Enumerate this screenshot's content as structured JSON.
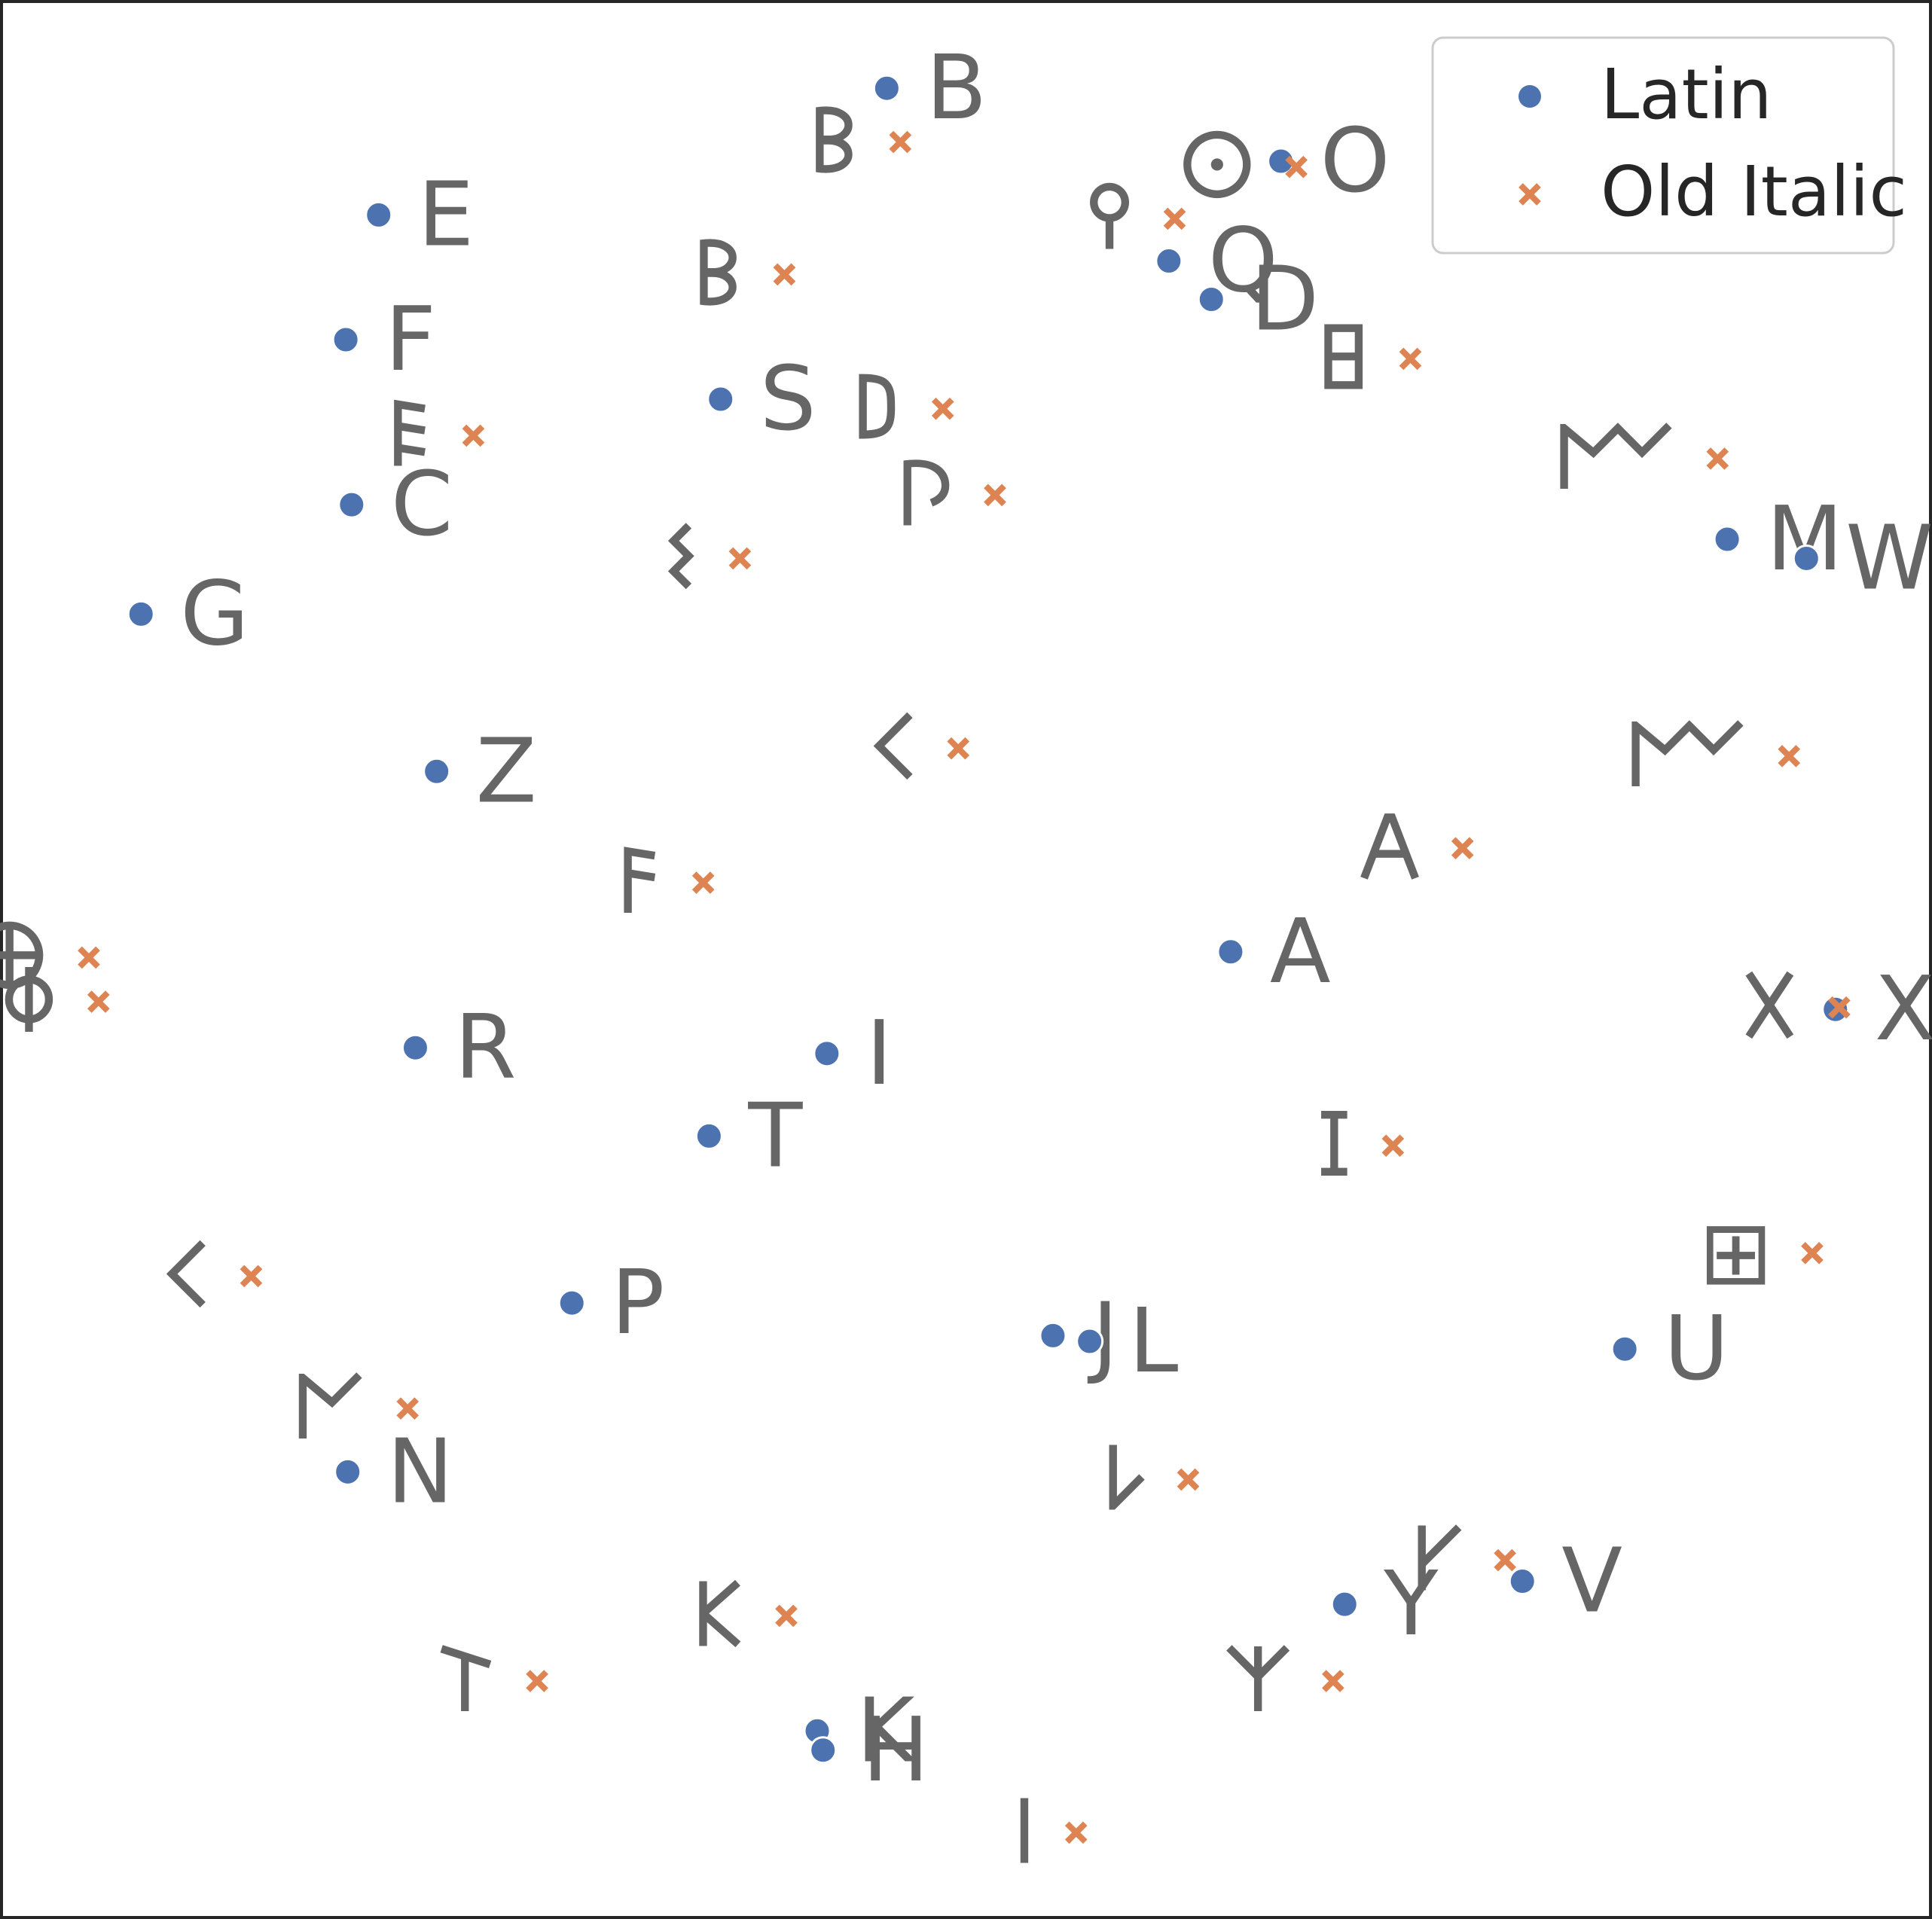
{
  "chart_data": {
    "type": "scatter",
    "title": "",
    "xlabel": "",
    "ylabel": "",
    "xlim": [
      0,
      1
    ],
    "ylim": [
      0,
      1
    ],
    "axes_visible": false,
    "grid": false,
    "legend_position": "top-right",
    "series": [
      {
        "name": "Latin",
        "marker": "circle",
        "color": "#4c72b0",
        "points": [
          {
            "label": "B",
            "x": 0.459,
            "y": 0.954
          },
          {
            "label": "O",
            "x": 0.663,
            "y": 0.916
          },
          {
            "label": "E",
            "x": 0.196,
            "y": 0.888
          },
          {
            "label": "Q",
            "x": 0.605,
            "y": 0.864
          },
          {
            "label": "D",
            "x": 0.627,
            "y": 0.844
          },
          {
            "label": "F",
            "x": 0.179,
            "y": 0.823
          },
          {
            "label": "S",
            "x": 0.373,
            "y": 0.792
          },
          {
            "label": "C",
            "x": 0.182,
            "y": 0.737
          },
          {
            "label": "M",
            "x": 0.894,
            "y": 0.719
          },
          {
            "label": "W",
            "x": 0.935,
            "y": 0.709
          },
          {
            "label": "G",
            "x": 0.073,
            "y": 0.68
          },
          {
            "label": "Z",
            "x": 0.226,
            "y": 0.598
          },
          {
            "label": "A",
            "x": 0.637,
            "y": 0.504
          },
          {
            "label": "X",
            "x": 0.95,
            "y": 0.474
          },
          {
            "label": "R",
            "x": 0.215,
            "y": 0.454
          },
          {
            "label": "I",
            "x": 0.428,
            "y": 0.451
          },
          {
            "label": "T",
            "x": 0.367,
            "y": 0.408
          },
          {
            "label": "P",
            "x": 0.296,
            "y": 0.321
          },
          {
            "label": "J",
            "x": 0.545,
            "y": 0.304
          },
          {
            "label": "L",
            "x": 0.564,
            "y": 0.301
          },
          {
            "label": "U",
            "x": 0.841,
            "y": 0.297
          },
          {
            "label": "N",
            "x": 0.18,
            "y": 0.233
          },
          {
            "label": "Y",
            "x": 0.696,
            "y": 0.164
          },
          {
            "label": "V",
            "x": 0.788,
            "y": 0.176
          },
          {
            "label": "K",
            "x": 0.423,
            "y": 0.098
          },
          {
            "label": "H",
            "x": 0.426,
            "y": 0.088
          }
        ]
      },
      {
        "name": "Old Italic",
        "marker": "x",
        "color": "#dd8452",
        "points": [
          {
            "label": "𐌁",
            "x": 0.466,
            "y": 0.926
          },
          {
            "label": "𐌏",
            "x": 0.671,
            "y": 0.913
          },
          {
            "label": "𐌒",
            "x": 0.608,
            "y": 0.886
          },
          {
            "label": "𐌁",
            "x": 0.406,
            "y": 0.857
          },
          {
            "label": "𐌇",
            "x": 0.73,
            "y": 0.813
          },
          {
            "label": "𐌄",
            "x": 0.245,
            "y": 0.773
          },
          {
            "label": "𐌃",
            "x": 0.488,
            "y": 0.787
          },
          {
            "label": "𐌌",
            "x": 0.889,
            "y": 0.761
          },
          {
            "label": "𐌐",
            "x": 0.515,
            "y": 0.742
          },
          {
            "label": "𐌔",
            "x": 0.383,
            "y": 0.709
          },
          {
            "label": "𐌂",
            "x": 0.496,
            "y": 0.61
          },
          {
            "label": "𐌌",
            "x": 0.926,
            "y": 0.606
          },
          {
            "label": "𐌀",
            "x": 0.757,
            "y": 0.558
          },
          {
            "label": "𐌅",
            "x": 0.364,
            "y": 0.54
          },
          {
            "label": "𐌈",
            "x": 0.046,
            "y": 0.501
          },
          {
            "label": "𐌘",
            "x": 0.051,
            "y": 0.478
          },
          {
            "label": "𐌗",
            "x": 0.952,
            "y": 0.475
          },
          {
            "label": "𐌆",
            "x": 0.721,
            "y": 0.403
          },
          {
            "label": "𐌂",
            "x": 0.13,
            "y": 0.335
          },
          {
            "label": "⊞",
            "x": 0.938,
            "y": 0.347
          },
          {
            "label": "𐌍",
            "x": 0.211,
            "y": 0.266
          },
          {
            "label": "𐌋",
            "x": 0.615,
            "y": 0.229
          },
          {
            "label": "𐌖",
            "x": 0.779,
            "y": 0.187
          },
          {
            "label": "𐌊",
            "x": 0.407,
            "y": 0.158
          },
          {
            "label": "𐌕",
            "x": 0.278,
            "y": 0.124
          },
          {
            "label": "𐌙",
            "x": 0.69,
            "y": 0.124
          },
          {
            "label": "𐌉",
            "x": 0.557,
            "y": 0.045
          }
        ]
      }
    ]
  },
  "legend": {
    "items": [
      {
        "label": "Latin",
        "color": "#4c72b0",
        "marker": "circle"
      },
      {
        "label": "Old Italic",
        "color": "#dd8452",
        "marker": "x"
      }
    ]
  }
}
